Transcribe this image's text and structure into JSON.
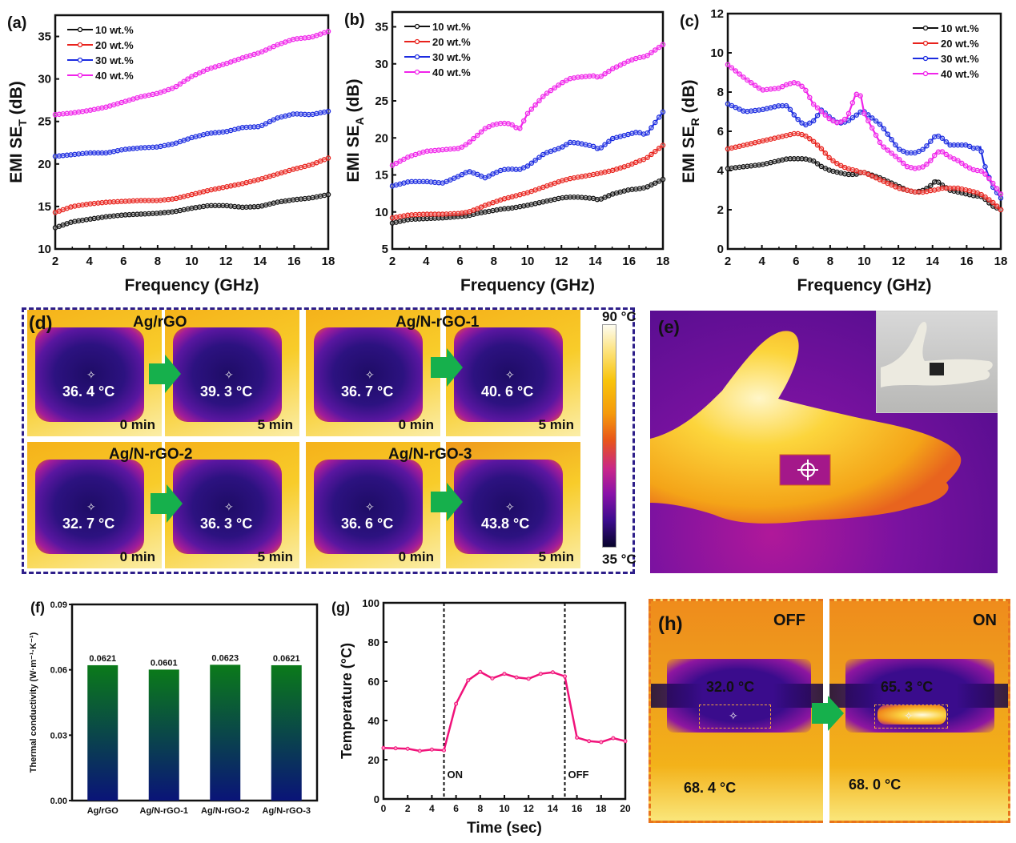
{
  "legend": [
    "10 wt.%",
    "20 wt.%",
    "30 wt.%",
    "40 wt.%"
  ],
  "series_colors": [
    "#111111",
    "#e8221c",
    "#1c2ce0",
    "#f024ea"
  ],
  "chart_data": [
    {
      "id": "a",
      "panel_label": "(a)",
      "type": "line",
      "xlabel": "Frequency (GHz)",
      "ylabel": "EMI SE",
      "ylabel_sub": "T",
      "ylabel_tail": " (dB)",
      "xlim": [
        2,
        18
      ],
      "ylim": [
        10,
        37.5
      ],
      "xticks": [
        2,
        4,
        6,
        8,
        10,
        12,
        14,
        16,
        18
      ],
      "yticks": [
        10,
        15,
        20,
        25,
        30,
        35
      ],
      "legend_position": "top-left",
      "x": [
        2,
        3,
        4,
        5,
        6,
        7,
        8,
        9,
        10,
        11,
        12,
        13,
        14,
        15,
        16,
        17,
        18
      ],
      "series": [
        {
          "name": "10 wt.%",
          "values": [
            12.5,
            13.2,
            13.5,
            13.8,
            14.0,
            14.1,
            14.2,
            14.4,
            14.8,
            15.1,
            15.1,
            14.9,
            15.0,
            15.5,
            15.8,
            16.0,
            16.4
          ]
        },
        {
          "name": "20 wt.%",
          "values": [
            14.3,
            15.0,
            15.3,
            15.5,
            15.6,
            15.7,
            15.7,
            15.9,
            16.4,
            16.9,
            17.3,
            17.7,
            18.2,
            18.8,
            19.4,
            19.9,
            20.7
          ]
        },
        {
          "name": "30 wt.%",
          "values": [
            20.9,
            21.1,
            21.3,
            21.3,
            21.7,
            21.9,
            22.0,
            22.4,
            23.1,
            23.6,
            23.8,
            24.3,
            24.4,
            25.4,
            25.9,
            25.8,
            26.2
          ]
        },
        {
          "name": "40 wt.%",
          "values": [
            25.8,
            26.0,
            26.3,
            26.7,
            27.3,
            27.9,
            28.3,
            29.0,
            30.3,
            31.2,
            31.8,
            32.5,
            33.1,
            34.0,
            34.7,
            34.9,
            35.6
          ]
        }
      ]
    },
    {
      "id": "b",
      "panel_label": "(b)",
      "type": "line",
      "xlabel": "Frequency (GHz)",
      "ylabel": "EMI SE",
      "ylabel_sub": "A",
      "ylabel_tail": " (dB)",
      "xlim": [
        2,
        18
      ],
      "ylim": [
        5,
        37
      ],
      "xticks": [
        2,
        4,
        6,
        8,
        10,
        12,
        14,
        16,
        18
      ],
      "yticks": [
        5,
        10,
        15,
        20,
        25,
        30,
        35
      ],
      "legend_position": "top-left",
      "x": [
        2,
        3,
        4,
        5,
        6,
        6.5,
        7,
        7.5,
        8,
        8.5,
        9,
        9.5,
        10,
        11,
        12,
        12.5,
        13,
        14,
        14.2,
        15,
        16,
        16.5,
        17,
        18
      ],
      "series": [
        {
          "name": "10 wt.%",
          "values": [
            8.5,
            9.0,
            9.1,
            9.2,
            9.4,
            9.5,
            9.8,
            10.0,
            10.2,
            10.4,
            10.5,
            10.7,
            10.9,
            11.4,
            11.9,
            12.0,
            12.0,
            11.8,
            11.6,
            12.4,
            13.0,
            13.1,
            13.3,
            14.4
          ]
        },
        {
          "name": "20 wt.%",
          "values": [
            9.2,
            9.6,
            9.7,
            9.7,
            9.8,
            10.0,
            10.4,
            10.9,
            11.3,
            11.7,
            12.0,
            12.3,
            12.6,
            13.4,
            14.2,
            14.5,
            14.7,
            15.1,
            15.2,
            15.6,
            16.3,
            16.8,
            17.2,
            19.0
          ]
        },
        {
          "name": "30 wt.%",
          "values": [
            13.5,
            14.1,
            14.1,
            13.9,
            14.9,
            15.5,
            15.1,
            14.6,
            15.2,
            15.7,
            15.8,
            15.7,
            16.2,
            17.9,
            18.7,
            19.4,
            19.3,
            18.8,
            18.4,
            19.9,
            20.5,
            20.8,
            20.4,
            23.5
          ]
        },
        {
          "name": "40 wt.%",
          "values": [
            16.3,
            17.5,
            18.2,
            18.4,
            18.6,
            19.3,
            20.3,
            21.3,
            21.8,
            22.0,
            21.9,
            21.1,
            23.3,
            25.8,
            27.4,
            28.0,
            28.2,
            28.4,
            28.1,
            29.3,
            30.4,
            30.8,
            31.0,
            32.6
          ]
        }
      ]
    },
    {
      "id": "c",
      "panel_label": "(c)",
      "type": "line",
      "xlabel": "Frequency (GHz)",
      "ylabel": "EMI SE",
      "ylabel_sub": "R",
      "ylabel_tail": " (dB)",
      "xlim": [
        2,
        18
      ],
      "ylim": [
        0,
        12
      ],
      "xticks": [
        2,
        4,
        6,
        8,
        10,
        12,
        14,
        16,
        18
      ],
      "yticks": [
        0,
        2,
        4,
        6,
        8,
        10,
        12
      ],
      "legend_position": "top-right",
      "x": [
        2,
        3,
        4,
        5,
        5.5,
        6,
        6.5,
        7,
        7.5,
        8,
        8.5,
        9,
        9.5,
        9.8,
        10,
        11,
        12,
        12.5,
        13,
        13.5,
        14,
        14.2,
        14.5,
        15,
        15.5,
        16,
        16.5,
        16.8,
        17,
        17.5,
        18
      ],
      "series": [
        {
          "name": "10 wt.%",
          "values": [
            4.1,
            4.2,
            4.3,
            4.5,
            4.6,
            4.6,
            4.6,
            4.5,
            4.2,
            4.0,
            3.9,
            3.8,
            3.8,
            3.9,
            3.9,
            3.6,
            3.2,
            3.0,
            2.9,
            3.0,
            3.3,
            3.5,
            3.3,
            3.0,
            2.9,
            2.8,
            2.7,
            2.7,
            2.6,
            2.2,
            2.0
          ]
        },
        {
          "name": "20 wt.%",
          "values": [
            5.1,
            5.3,
            5.5,
            5.7,
            5.8,
            5.9,
            5.8,
            5.5,
            5.1,
            4.6,
            4.3,
            4.1,
            4.0,
            3.9,
            3.9,
            3.5,
            3.1,
            3.0,
            2.9,
            2.9,
            3.0,
            3.0,
            3.1,
            3.1,
            3.1,
            3.0,
            2.9,
            2.8,
            2.7,
            2.4,
            2.0
          ]
        },
        {
          "name": "30 wt.%",
          "values": [
            7.4,
            7.0,
            7.1,
            7.3,
            7.3,
            6.7,
            6.3,
            6.5,
            7.1,
            6.7,
            6.4,
            6.5,
            6.8,
            7.0,
            7.0,
            6.3,
            5.1,
            4.9,
            4.9,
            5.1,
            5.6,
            5.8,
            5.7,
            5.3,
            5.3,
            5.3,
            5.1,
            5.2,
            4.4,
            3.2,
            2.6
          ]
        },
        {
          "name": "40 wt.%",
          "values": [
            9.4,
            8.7,
            8.1,
            8.2,
            8.4,
            8.5,
            8.2,
            7.4,
            7.0,
            6.6,
            6.4,
            6.7,
            7.9,
            7.8,
            6.9,
            5.3,
            4.6,
            4.2,
            4.1,
            4.2,
            4.6,
            4.9,
            5.0,
            4.7,
            4.5,
            4.2,
            4.0,
            4.0,
            3.9,
            3.4,
            2.8
          ]
        }
      ]
    },
    {
      "id": "f",
      "panel_label": "(f)",
      "type": "bar",
      "categories": [
        "Ag/rGO",
        "Ag/N-rGO-1",
        "Ag/N-rGO-2",
        "Ag/N-rGO-3"
      ],
      "values": [
        0.0621,
        0.0601,
        0.0623,
        0.0621
      ],
      "data_labels": [
        "0.0621",
        "0.0601",
        "0.0623",
        "0.0621"
      ],
      "ylabel": "Thermal conductivity (W·m⁻¹·K⁻¹)",
      "ylim": [
        0,
        0.09
      ],
      "yticks": [
        "0.00",
        "0.03",
        "0.06",
        "0.09"
      ],
      "bar_gradient": [
        "#0b7a1a",
        "#0a1478"
      ]
    },
    {
      "id": "g",
      "panel_label": "(g)",
      "type": "line",
      "xlabel": "Time (sec)",
      "ylabel": "Temperature (°C)",
      "xlim": [
        0,
        20
      ],
      "ylim": [
        0,
        100
      ],
      "xticks": [
        0,
        2,
        4,
        6,
        8,
        10,
        12,
        14,
        16,
        18,
        20
      ],
      "yticks": [
        0,
        20,
        40,
        60,
        80,
        100
      ],
      "x": [
        0,
        1,
        2,
        3,
        4,
        5,
        6,
        7,
        8,
        9,
        10,
        11,
        12,
        13,
        14,
        15,
        16,
        17,
        18,
        19,
        20
      ],
      "series": [
        {
          "name": "temperature",
          "color": "#f0127a",
          "values": [
            26,
            25.8,
            25.6,
            24.5,
            25.2,
            24.8,
            48.5,
            60.5,
            64.8,
            61.5,
            63.8,
            62,
            61.3,
            63.8,
            64.6,
            62.5,
            31.3,
            29.5,
            29,
            31,
            29.5
          ]
        }
      ],
      "markers": [
        {
          "x": 5,
          "label": "ON"
        },
        {
          "x": 15,
          "label": "OFF"
        }
      ]
    }
  ],
  "panel_d": {
    "label": "(d)",
    "colorbar": {
      "max_label": "90 °C",
      "min_label": "35 °C"
    },
    "samples": [
      {
        "name": "Ag/rGO",
        "before": "36. 4 °C",
        "after": "39. 3 °C",
        "t0": "0 min",
        "t1": "5 min"
      },
      {
        "name": "Ag/N-rGO-1",
        "before": "36. 7 °C",
        "after": "40. 6 °C",
        "t0": "0 min",
        "t1": "5 min"
      },
      {
        "name": "Ag/N-rGO-2",
        "before": "32. 7 °C",
        "after": "36. 3 °C",
        "t0": "0 min",
        "t1": "5 min"
      },
      {
        "name": "Ag/N-rGO-3",
        "before": "36. 6 °C",
        "after": "43.8 °C",
        "t0": "0 min",
        "t1": "5 min"
      }
    ]
  },
  "panel_e": {
    "label": "(e)"
  },
  "panel_h": {
    "label": "(h)",
    "off": {
      "state": "OFF",
      "spot": "32.0 °C",
      "ambient": "68. 4 °C"
    },
    "on": {
      "state": "ON",
      "spot": "65. 3 °C",
      "ambient": "68. 0 °C"
    }
  }
}
